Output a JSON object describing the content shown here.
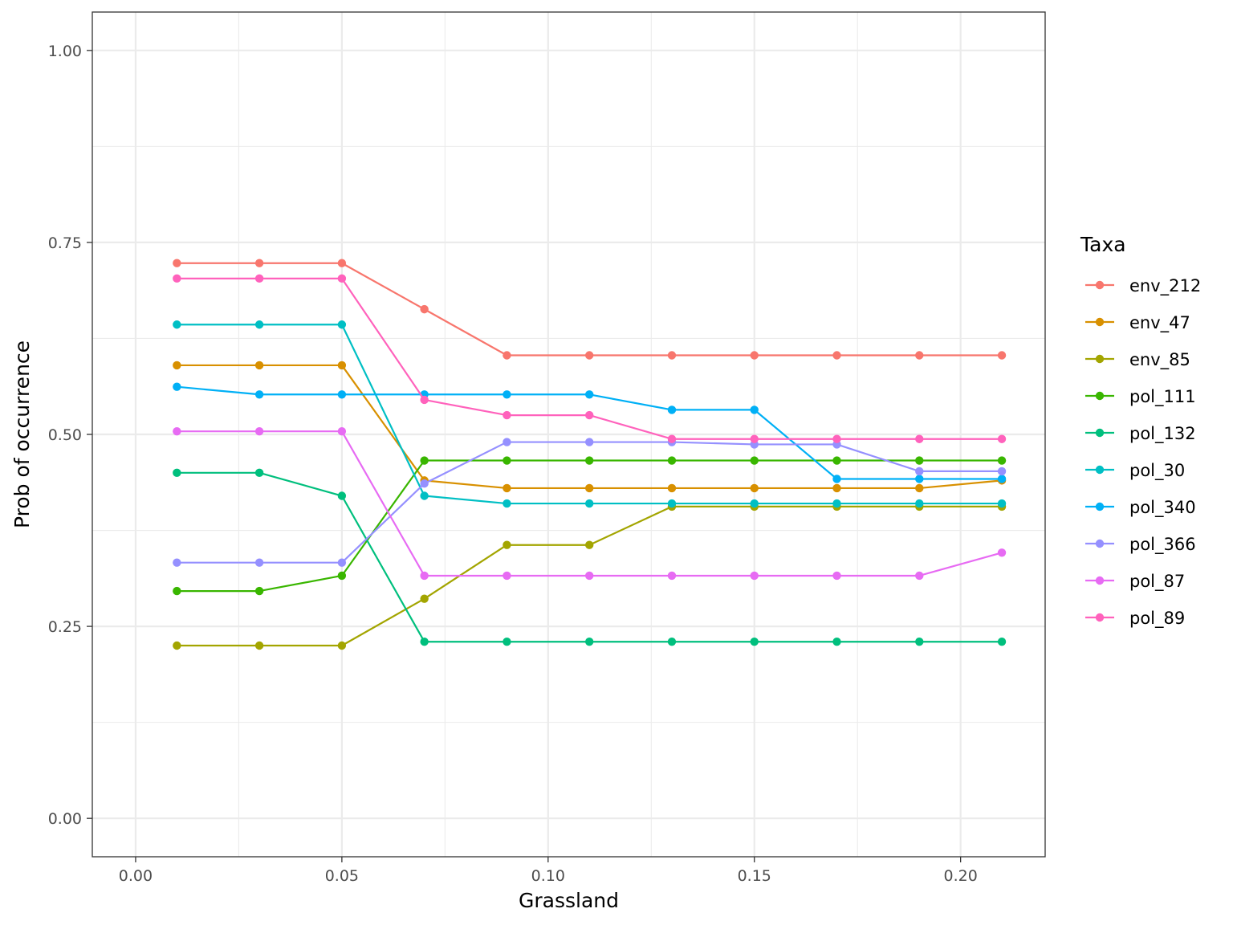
{
  "chart_data": {
    "type": "line",
    "xlabel": "Grassland",
    "ylabel": "Prob of occurrence",
    "xlim": [
      -0.0105,
      0.2205
    ],
    "ylim": [
      -0.05,
      1.05
    ],
    "x_ticks": [
      0.0,
      0.05,
      0.1,
      0.15,
      0.2
    ],
    "x_tick_labels": [
      "0.00",
      "0.05",
      "0.10",
      "0.15",
      "0.20"
    ],
    "y_ticks": [
      0.0,
      0.25,
      0.5,
      0.75,
      1.0
    ],
    "y_tick_labels": [
      "0.00",
      "0.25",
      "0.50",
      "0.75",
      "1.00"
    ],
    "grid": true,
    "legend": {
      "title": "Taxa",
      "position": "right"
    },
    "x": [
      0.01,
      0.03,
      0.05,
      0.07,
      0.09,
      0.11,
      0.13,
      0.15,
      0.17,
      0.19,
      0.21
    ],
    "series": [
      {
        "name": "env_212",
        "color": "#F8766D",
        "values": [
          0.723,
          0.723,
          0.723,
          0.663,
          0.603,
          0.603,
          0.603,
          0.603,
          0.603,
          0.603,
          0.603
        ]
      },
      {
        "name": "env_47",
        "color": "#D89000",
        "values": [
          0.59,
          0.59,
          0.59,
          0.44,
          0.43,
          0.43,
          0.43,
          0.43,
          0.43,
          0.43,
          0.44
        ]
      },
      {
        "name": "env_85",
        "color": "#A3A500",
        "values": [
          0.225,
          0.225,
          0.225,
          0.286,
          0.356,
          0.356,
          0.406,
          0.406,
          0.406,
          0.406,
          0.406
        ]
      },
      {
        "name": "pol_111",
        "color": "#39B600",
        "values": [
          0.296,
          0.296,
          0.316,
          0.466,
          0.466,
          0.466,
          0.466,
          0.466,
          0.466,
          0.466,
          0.466
        ]
      },
      {
        "name": "pol_132",
        "color": "#00BF7D",
        "values": [
          0.45,
          0.45,
          0.42,
          0.23,
          0.23,
          0.23,
          0.23,
          0.23,
          0.23,
          0.23,
          0.23
        ]
      },
      {
        "name": "pol_30",
        "color": "#00BFC4",
        "values": [
          0.643,
          0.643,
          0.643,
          0.42,
          0.41,
          0.41,
          0.41,
          0.41,
          0.41,
          0.41,
          0.41
        ]
      },
      {
        "name": "pol_340",
        "color": "#00B0F6",
        "values": [
          0.562,
          0.552,
          0.552,
          0.552,
          0.552,
          0.552,
          0.532,
          0.532,
          0.442,
          0.442,
          0.442
        ]
      },
      {
        "name": "pol_366",
        "color": "#9590FF",
        "values": [
          0.333,
          0.333,
          0.333,
          0.436,
          0.49,
          0.49,
          0.49,
          0.487,
          0.487,
          0.452,
          0.452
        ]
      },
      {
        "name": "pol_87",
        "color": "#E76BF3",
        "values": [
          0.504,
          0.504,
          0.504,
          0.316,
          0.316,
          0.316,
          0.316,
          0.316,
          0.316,
          0.316,
          0.346
        ]
      },
      {
        "name": "pol_89",
        "color": "#FF62BC",
        "values": [
          0.703,
          0.703,
          0.703,
          0.545,
          0.525,
          0.525,
          0.494,
          0.494,
          0.494,
          0.494,
          0.494
        ]
      }
    ]
  }
}
